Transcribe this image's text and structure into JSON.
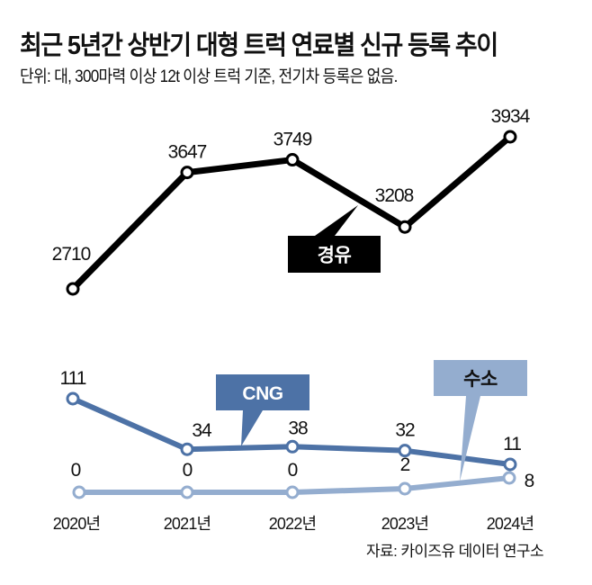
{
  "title": "최근 5년간 상반기 대형 트럭 연료별 신규 등록 추이",
  "subtitle": "단위: 대, 300마력 이상 12t 이상 트럭 기준, 전기차 등록은 없음.",
  "source": "자료: 카이즈유 데이터 연구소",
  "chart_data": {
    "type": "line",
    "title": "최근 5년간 상반기 대형 트럭 연료별 신규 등록 추이",
    "subtitle": "단위: 대, 300마력 이상 12t 이상 트럭 기준, 전기차 등록은 없음.",
    "xlabel": "",
    "ylabel": "",
    "categories": [
      "2020년",
      "2021년",
      "2022년",
      "2023년",
      "2024년"
    ],
    "grid": false,
    "legend": "inline-callouts",
    "series": [
      {
        "name": "경유",
        "values": [
          2710,
          3647,
          3749,
          3208,
          3934
        ],
        "color": "#000000",
        "label_text_color": "#ffffff"
      },
      {
        "name": "CNG",
        "values": [
          111,
          34,
          38,
          32,
          11
        ],
        "color": "#4d72a6",
        "label_text_color": "#ffffff"
      },
      {
        "name": "수소",
        "values": [
          0,
          0,
          0,
          2,
          8
        ],
        "color": "#94adcf",
        "label_text_color": "#111111"
      }
    ]
  }
}
